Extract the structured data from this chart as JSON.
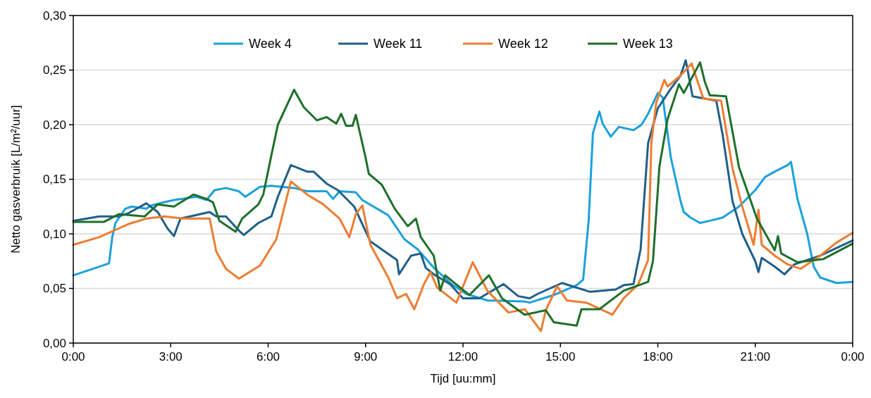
{
  "chart_data": {
    "type": "line",
    "xlabel": "Tijd [uu:mm]",
    "ylabel": "Netto gasverbruik [L/m²/uur]",
    "xlim": [
      0,
      24
    ],
    "xticks": [
      {
        "value": 0,
        "label": "0:00"
      },
      {
        "value": 3,
        "label": "3:00"
      },
      {
        "value": 6,
        "label": "6:00"
      },
      {
        "value": 9,
        "label": "9:00"
      },
      {
        "value": 12,
        "label": "12:00"
      },
      {
        "value": 15,
        "label": "15:00"
      },
      {
        "value": 18,
        "label": "18:00"
      },
      {
        "value": 21,
        "label": "21:00"
      },
      {
        "value": 24,
        "label": "0:00"
      }
    ],
    "ylim": [
      0,
      0.3
    ],
    "yticks": [
      {
        "value": 0,
        "label": "0,00"
      },
      {
        "value": 0.05,
        "label": "0,05"
      },
      {
        "value": 0.1,
        "label": "0,10"
      },
      {
        "value": 0.15,
        "label": "0,15"
      },
      {
        "value": 0.2,
        "label": "0,20"
      },
      {
        "value": 0.25,
        "label": "0,25"
      },
      {
        "value": 0.3,
        "label": "0,30"
      }
    ],
    "grid": "y",
    "legend": "top",
    "line_style": "solid",
    "marker": "none",
    "series": [
      {
        "name": "Week 4",
        "color": "#1ba1dc",
        "x": [
          0,
          0.7,
          1.1,
          1.2,
          1.3,
          1.6,
          1.8,
          2.25,
          2.4,
          2.8,
          3.1,
          3.8,
          4.1,
          4.35,
          4.7,
          5.1,
          5.3,
          5.75,
          6.1,
          6.8,
          7.2,
          7.8,
          8.0,
          8.2,
          8.7,
          8.9,
          9.7,
          10.2,
          10.6,
          11.1,
          11.65,
          12.1,
          12.75,
          13.9,
          14.05,
          14.8,
          15.5,
          15.7,
          15.87,
          16.0,
          16.2,
          16.3,
          16.55,
          16.8,
          17.25,
          17.5,
          17.7,
          18.0,
          18.15,
          18.4,
          18.7,
          18.8,
          19.0,
          19.3,
          19.6,
          20.0,
          20.5,
          21.0,
          21.3,
          21.6,
          22.0,
          22.1,
          22.3,
          22.6,
          22.8,
          23.0,
          23.5,
          24
        ],
        "values": [
          0.062,
          0.069,
          0.073,
          0.097,
          0.11,
          0.123,
          0.125,
          0.123,
          0.126,
          0.129,
          0.131,
          0.134,
          0.131,
          0.14,
          0.142,
          0.139,
          0.134,
          0.143,
          0.144,
          0.142,
          0.139,
          0.139,
          0.132,
          0.139,
          0.138,
          0.131,
          0.117,
          0.095,
          0.086,
          0.069,
          0.054,
          0.045,
          0.039,
          0.038,
          0.037,
          0.044,
          0.053,
          0.058,
          0.112,
          0.192,
          0.212,
          0.201,
          0.189,
          0.198,
          0.195,
          0.2,
          0.21,
          0.229,
          0.225,
          0.17,
          0.13,
          0.12,
          0.115,
          0.11,
          0.112,
          0.115,
          0.125,
          0.14,
          0.152,
          0.157,
          0.163,
          0.166,
          0.132,
          0.1,
          0.07,
          0.06,
          0.055,
          0.056
        ]
      },
      {
        "name": "Week 11",
        "color": "#1f5f8a",
        "x": [
          0,
          0.8,
          1.4,
          1.7,
          2.25,
          2.6,
          2.9,
          3.1,
          3.3,
          4.2,
          4.4,
          4.7,
          5.1,
          5.25,
          5.7,
          6.1,
          6.3,
          6.7,
          7.2,
          7.4,
          7.8,
          8.15,
          8.65,
          9.15,
          9.97,
          10.03,
          10.4,
          10.7,
          10.85,
          11.1,
          11.6,
          12.0,
          12.5,
          13.25,
          13.7,
          14.05,
          14.3,
          15.05,
          15.9,
          16.7,
          16.95,
          17.25,
          17.47,
          17.7,
          18.0,
          18.4,
          18.7,
          18.86,
          19.07,
          19.8,
          20.0,
          20.3,
          20.6,
          21.0,
          21.1,
          21.2,
          21.6,
          21.9,
          22.2,
          22.5,
          23.0,
          23.5,
          24
        ],
        "values": [
          0.112,
          0.116,
          0.116,
          0.119,
          0.128,
          0.12,
          0.105,
          0.098,
          0.114,
          0.12,
          0.116,
          0.116,
          0.103,
          0.099,
          0.11,
          0.116,
          0.134,
          0.163,
          0.157,
          0.157,
          0.146,
          0.14,
          0.125,
          0.093,
          0.076,
          0.063,
          0.08,
          0.082,
          0.069,
          0.063,
          0.054,
          0.041,
          0.041,
          0.054,
          0.043,
          0.041,
          0.045,
          0.055,
          0.047,
          0.049,
          0.053,
          0.054,
          0.086,
          0.183,
          0.215,
          0.233,
          0.245,
          0.259,
          0.226,
          0.222,
          0.19,
          0.13,
          0.1,
          0.075,
          0.065,
          0.078,
          0.07,
          0.063,
          0.072,
          0.075,
          0.08,
          0.087,
          0.094
        ]
      },
      {
        "name": "Week 12",
        "color": "#ed7d31",
        "x": [
          0,
          0.8,
          1.4,
          1.7,
          2.25,
          2.8,
          3.4,
          4.2,
          4.4,
          4.7,
          5.1,
          5.75,
          6.25,
          6.7,
          7.2,
          7.7,
          8.2,
          8.5,
          8.7,
          8.9,
          9.15,
          9.7,
          9.97,
          10.25,
          10.5,
          10.8,
          11.0,
          11.2,
          11.8,
          12.3,
          12.75,
          13.4,
          13.9,
          14.4,
          14.55,
          14.9,
          15.2,
          15.8,
          16.6,
          16.95,
          17.4,
          17.7,
          17.8,
          17.95,
          18.2,
          18.3,
          18.7,
          19.04,
          19.4,
          19.95,
          20.3,
          20.6,
          20.95,
          21.1,
          21.2,
          21.6,
          22.0,
          22.4,
          23.0,
          23.5,
          24
        ],
        "values": [
          0.09,
          0.097,
          0.105,
          0.109,
          0.114,
          0.116,
          0.114,
          0.114,
          0.084,
          0.068,
          0.059,
          0.071,
          0.095,
          0.148,
          0.136,
          0.127,
          0.114,
          0.097,
          0.118,
          0.126,
          0.09,
          0.06,
          0.041,
          0.045,
          0.031,
          0.054,
          0.065,
          0.051,
          0.037,
          0.074,
          0.048,
          0.028,
          0.031,
          0.011,
          0.03,
          0.052,
          0.039,
          0.037,
          0.026,
          0.041,
          0.054,
          0.076,
          0.183,
          0.22,
          0.241,
          0.235,
          0.245,
          0.256,
          0.224,
          0.222,
          0.16,
          0.125,
          0.09,
          0.122,
          0.09,
          0.08,
          0.072,
          0.068,
          0.08,
          0.092,
          0.101
        ]
      },
      {
        "name": "Week 13",
        "color": "#1e6f2a",
        "x": [
          0,
          0.95,
          1.4,
          2.2,
          2.6,
          3.1,
          3.7,
          4.1,
          4.3,
          4.5,
          5.0,
          5.2,
          5.7,
          5.85,
          6.1,
          6.3,
          6.8,
          7.1,
          7.5,
          7.8,
          8.1,
          8.25,
          8.4,
          8.6,
          8.7,
          9.0,
          9.1,
          9.5,
          9.9,
          10.3,
          10.55,
          10.7,
          11.1,
          11.3,
          11.45,
          12.2,
          12.8,
          13.2,
          13.9,
          14.55,
          14.8,
          15.5,
          15.65,
          16.2,
          16.95,
          17.7,
          17.85,
          18.05,
          18.3,
          18.65,
          18.8,
          19.3,
          19.45,
          19.6,
          20.1,
          20.5,
          21.05,
          21.6,
          21.7,
          21.8,
          22.3,
          23.1,
          24
        ],
        "values": [
          0.111,
          0.111,
          0.118,
          0.116,
          0.127,
          0.125,
          0.136,
          0.132,
          0.129,
          0.112,
          0.102,
          0.114,
          0.127,
          0.136,
          0.172,
          0.2,
          0.232,
          0.216,
          0.204,
          0.207,
          0.201,
          0.21,
          0.199,
          0.199,
          0.209,
          0.17,
          0.155,
          0.145,
          0.123,
          0.107,
          0.114,
          0.097,
          0.08,
          0.048,
          0.062,
          0.044,
          0.062,
          0.041,
          0.026,
          0.03,
          0.019,
          0.016,
          0.031,
          0.031,
          0.048,
          0.056,
          0.075,
          0.162,
          0.205,
          0.237,
          0.229,
          0.257,
          0.239,
          0.227,
          0.226,
          0.161,
          0.114,
          0.085,
          0.098,
          0.082,
          0.074,
          0.077,
          0.091
        ]
      }
    ]
  }
}
